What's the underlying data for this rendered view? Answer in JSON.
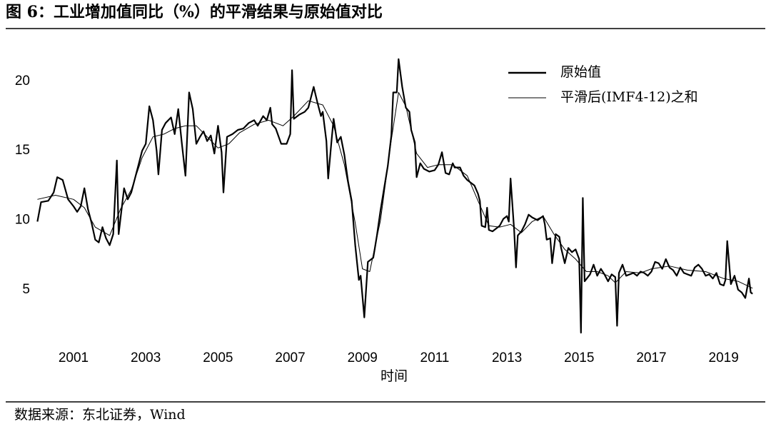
{
  "chart_data": {
    "type": "line",
    "title": "图 6：工业增加值同比（%）的平滑结果与原始值对比",
    "x_label": "时间",
    "source": "数据来源：东北证券，Wind",
    "xlim": [
      2000,
      2020.2
    ],
    "ylim": [
      1.7,
      22
    ],
    "xticks": [
      2001,
      2003,
      2005,
      2007,
      2009,
      2011,
      2013,
      2015,
      2017,
      2019
    ],
    "yticks": [
      5,
      10,
      15,
      20
    ],
    "legend": "upper right",
    "series": [
      {
        "name": "原始值",
        "color": "#000000",
        "x": [
          2000.0,
          2000.1,
          2000.3,
          2000.45,
          2000.55,
          2000.7,
          2000.85,
          2001.0,
          2001.1,
          2001.2,
          2001.3,
          2001.4,
          2001.5,
          2001.6,
          2001.7,
          2001.8,
          2001.9,
          2002.0,
          2002.1,
          2002.2,
          2002.25,
          2002.4,
          2002.5,
          2002.6,
          2002.7,
          2002.8,
          2002.9,
          2003.0,
          2003.1,
          2003.2,
          2003.3,
          2003.35,
          2003.45,
          2003.55,
          2003.7,
          2003.8,
          2003.9,
          2004.0,
          2004.1,
          2004.2,
          2004.3,
          2004.4,
          2004.5,
          2004.6,
          2004.7,
          2004.8,
          2004.9,
          2005.0,
          2005.1,
          2005.15,
          2005.25,
          2005.4,
          2005.55,
          2005.7,
          2005.85,
          2006.0,
          2006.1,
          2006.25,
          2006.35,
          2006.45,
          2006.5,
          2006.6,
          2006.75,
          2006.9,
          2007.0,
          2007.05,
          2007.1,
          2007.25,
          2007.4,
          2007.5,
          2007.65,
          2007.75,
          2007.85,
          2007.9,
          2008.0,
          2008.05,
          2008.15,
          2008.2,
          2008.3,
          2008.4,
          2008.5,
          2008.6,
          2008.7,
          2008.8,
          2008.9,
          2008.95,
          2009.05,
          2009.15,
          2009.3,
          2009.4,
          2009.5,
          2009.6,
          2009.7,
          2009.8,
          2009.85,
          2009.95,
          2010.0,
          2010.1,
          2010.2,
          2010.3,
          2010.35,
          2010.45,
          2010.5,
          2010.6,
          2010.7,
          2010.85,
          2011.0,
          2011.1,
          2011.2,
          2011.3,
          2011.4,
          2011.5,
          2011.55,
          2011.7,
          2011.8,
          2011.9,
          2012.0,
          2012.1,
          2012.2,
          2012.25,
          2012.3,
          2012.4,
          2012.45,
          2012.5,
          2012.6,
          2012.7,
          2012.8,
          2012.9,
          2013.0,
          2013.05,
          2013.1,
          2013.2,
          2013.25,
          2013.3,
          2013.4,
          2013.5,
          2013.6,
          2013.7,
          2013.85,
          2014.0,
          2014.05,
          2014.1,
          2014.2,
          2014.25,
          2014.35,
          2014.45,
          2014.5,
          2014.6,
          2014.7,
          2014.8,
          2014.9,
          2015.0,
          2015.05,
          2015.1,
          2015.15,
          2015.3,
          2015.4,
          2015.5,
          2015.6,
          2015.7,
          2015.8,
          2015.9,
          2016.0,
          2016.05,
          2016.1,
          2016.2,
          2016.3,
          2016.5,
          2016.6,
          2016.7,
          2016.8,
          2016.9,
          2017.0,
          2017.1,
          2017.2,
          2017.3,
          2017.4,
          2017.5,
          2017.6,
          2017.7,
          2017.8,
          2017.9,
          2018.0,
          2018.1,
          2018.2,
          2018.3,
          2018.4,
          2018.5,
          2018.6,
          2018.7,
          2018.8,
          2018.9,
          2019.0,
          2019.05,
          2019.1,
          2019.2,
          2019.3,
          2019.4,
          2019.5,
          2019.6,
          2019.7,
          2019.75,
          2019.8
        ],
        "values": [
          9.9,
          11.3,
          11.4,
          12.0,
          13.1,
          12.9,
          11.5,
          11.0,
          10.6,
          11.0,
          12.3,
          10.8,
          9.8,
          8.6,
          8.4,
          9.5,
          8.7,
          8.2,
          9.0,
          14.3,
          9.0,
          12.3,
          11.5,
          12.0,
          13.0,
          14.0,
          15.0,
          15.5,
          18.2,
          17.2,
          15.0,
          13.3,
          16.5,
          17.0,
          17.4,
          16.2,
          18.0,
          15.5,
          13.2,
          19.2,
          18.0,
          15.5,
          16.0,
          16.4,
          15.7,
          16.1,
          14.8,
          16.8,
          14.9,
          12.0,
          16.0,
          16.2,
          16.5,
          16.6,
          17.0,
          17.2,
          16.8,
          17.5,
          17.2,
          18.1,
          16.9,
          16.6,
          15.5,
          15.5,
          16.2,
          20.8,
          17.3,
          17.6,
          17.8,
          18.1,
          19.6,
          18.5,
          17.5,
          17.8,
          15.7,
          13.0,
          15.9,
          17.3,
          15.6,
          16.0,
          14.7,
          12.8,
          11.4,
          8.2,
          5.7,
          6.0,
          3.0,
          7.0,
          7.3,
          8.9,
          10.7,
          12.3,
          13.9,
          16.1,
          19.2,
          19.2,
          21.6,
          19.6,
          18.1,
          17.8,
          16.5,
          15.6,
          13.1,
          14.1,
          13.7,
          13.5,
          13.6,
          14.0,
          14.9,
          13.4,
          13.3,
          14.1,
          13.8,
          13.8,
          13.2,
          12.9,
          12.7,
          12.5,
          11.9,
          11.4,
          9.6,
          9.5,
          10.9,
          9.3,
          9.2,
          9.4,
          9.6,
          10.1,
          10.3,
          9.9,
          13.0,
          9.3,
          6.6,
          8.9,
          9.2,
          9.7,
          10.4,
          10.2,
          10.0,
          10.3,
          9.7,
          8.6,
          8.7,
          6.9,
          9.0,
          8.8,
          8.0,
          6.9,
          8.0,
          7.7,
          7.9,
          7.2,
          1.9,
          11.6,
          5.6,
          6.1,
          6.8,
          6.0,
          6.5,
          6.1,
          5.6,
          6.1,
          5.9,
          2.4,
          6.2,
          6.8,
          6.0,
          6.2,
          6.0,
          6.3,
          6.2,
          6.0,
          6.3,
          7.0,
          6.9,
          6.5,
          7.2,
          6.6,
          6.4,
          6.0,
          6.6,
          6.2,
          6.1,
          6.0,
          6.6,
          6.8,
          6.5,
          6.0,
          6.1,
          5.8,
          6.2,
          5.4,
          5.3,
          5.7,
          8.5,
          5.4,
          6.0,
          5.0,
          4.8,
          4.4,
          5.8,
          4.8,
          4.7
        ]
      },
      {
        "name": "平滑后(IMF4-12)之和",
        "color": "#000000",
        "x": [
          2000.0,
          2000.5,
          2001.0,
          2001.3,
          2001.6,
          2002.0,
          2002.3,
          2002.6,
          2002.9,
          2003.2,
          2003.5,
          2003.8,
          2004.1,
          2004.4,
          2004.7,
          2005.0,
          2005.3,
          2005.6,
          2006.0,
          2006.4,
          2006.8,
          2007.1,
          2007.5,
          2007.9,
          2008.2,
          2008.5,
          2008.8,
          2009.0,
          2009.2,
          2009.5,
          2009.8,
          2010.0,
          2010.2,
          2010.5,
          2010.8,
          2011.1,
          2011.5,
          2011.9,
          2012.2,
          2012.5,
          2012.8,
          2013.1,
          2013.4,
          2013.7,
          2014.0,
          2014.3,
          2014.6,
          2014.9,
          2015.2,
          2015.5,
          2015.8,
          2016.0,
          2016.3,
          2016.7,
          2017.0,
          2017.5,
          2018.0,
          2018.5,
          2019.0,
          2019.4,
          2019.8
        ],
        "values": [
          11.5,
          11.8,
          11.5,
          10.9,
          9.5,
          8.9,
          10.8,
          12.2,
          14.5,
          16.0,
          16.2,
          16.6,
          16.8,
          16.8,
          16.0,
          15.2,
          15.5,
          16.3,
          16.9,
          17.2,
          16.8,
          17.5,
          18.6,
          18.3,
          16.8,
          14.0,
          9.8,
          6.5,
          6.3,
          10.0,
          15.8,
          19.2,
          18.2,
          14.8,
          13.8,
          14.0,
          14.0,
          13.2,
          11.4,
          9.6,
          9.5,
          9.7,
          9.1,
          9.9,
          10.3,
          9.0,
          7.9,
          7.2,
          6.3,
          6.3,
          6.0,
          5.5,
          6.3,
          6.2,
          6.5,
          6.7,
          6.4,
          6.3,
          5.8,
          5.6,
          5.1
        ]
      }
    ]
  }
}
